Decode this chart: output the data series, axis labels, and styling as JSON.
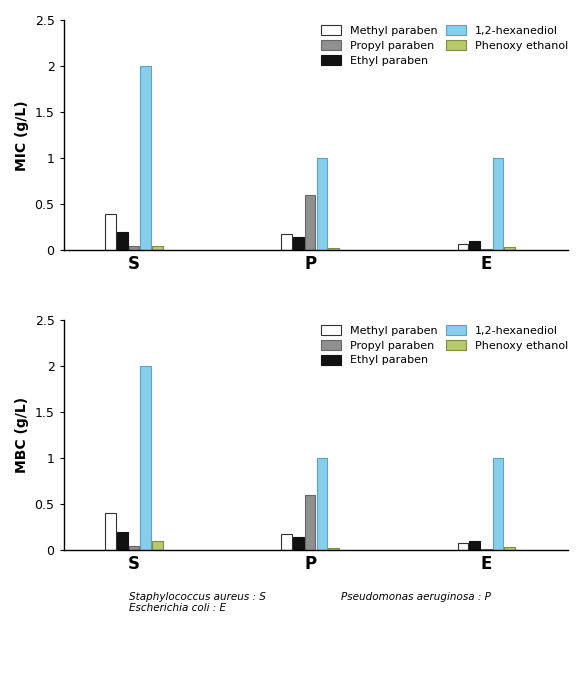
{
  "groups": [
    "S",
    "P",
    "E"
  ],
  "series_labels": [
    "Methyl paraben",
    "Ethyl paraben",
    "Propyl paraben",
    "1,2-hexanediol",
    "Phenoxy ethanol"
  ],
  "colors": [
    "#ffffff",
    "#111111",
    "#909090",
    "#87ceeb",
    "#b8c96a"
  ],
  "edge_colors": [
    "#333333",
    "#111111",
    "#666666",
    "#5ba3c9",
    "#7a9040"
  ],
  "MIC": {
    "S": [
      0.4,
      0.2,
      0.05,
      2.0,
      0.05
    ],
    "P": [
      0.175,
      0.15,
      0.6,
      1.0,
      0.025
    ],
    "E": [
      0.075,
      0.1,
      0.015,
      1.0,
      0.04
    ]
  },
  "MBC": {
    "S": [
      0.4,
      0.2,
      0.05,
      2.0,
      0.1
    ],
    "P": [
      0.175,
      0.15,
      0.6,
      1.0,
      0.025
    ],
    "E": [
      0.075,
      0.1,
      0.015,
      1.0,
      0.04
    ]
  },
  "ylim": [
    0,
    2.5
  ],
  "yticks": [
    0,
    0.5,
    1.0,
    1.5,
    2.0,
    2.5
  ],
  "ylabel_MIC": "MIC (g/L)",
  "ylabel_MBC": "MBC (g/L)",
  "footnote_left1": "Staphylococcus aureus : S",
  "footnote_left2": "Escherichia coli : E",
  "footnote_right": "Pseudomonas aeruginosa : P",
  "bar_width": 0.09,
  "group_centers": [
    1.0,
    2.5,
    4.0
  ]
}
